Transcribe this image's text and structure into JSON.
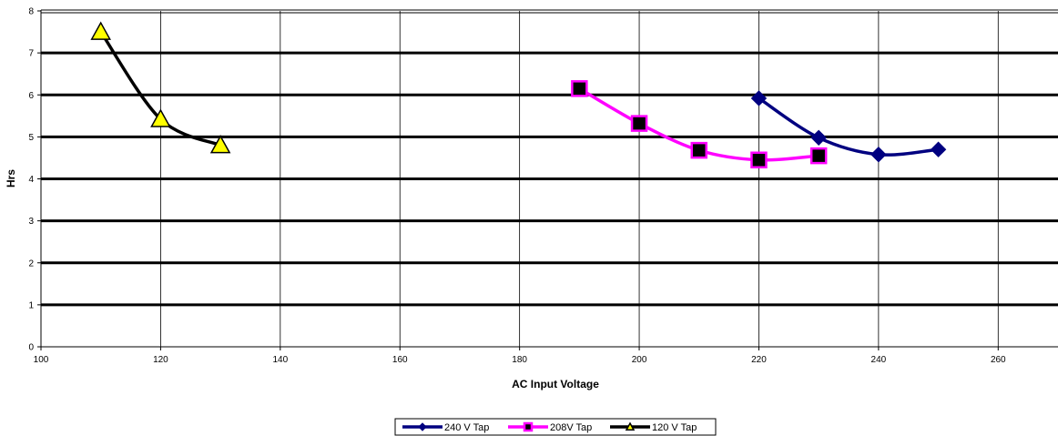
{
  "chart_data": {
    "type": "line",
    "title": "",
    "xlabel": "AC Input Voltage",
    "ylabel": "Hrs",
    "xlim": [
      100,
      270
    ],
    "ylim": [
      0,
      8
    ],
    "xticks": [
      100,
      120,
      140,
      160,
      180,
      200,
      220,
      240,
      260
    ],
    "yticks": [
      0,
      1,
      2,
      3,
      4,
      5,
      6,
      7,
      8
    ],
    "grid": true,
    "legend_position": "bottom-center",
    "series": [
      {
        "name": "240 V Tap",
        "color": "#000080",
        "marker": "diamond",
        "marker_fill": "#000080",
        "x": [
          220,
          230,
          240,
          250
        ],
        "y": [
          5.92,
          4.98,
          4.58,
          4.7
        ]
      },
      {
        "name": "208V Tap",
        "color": "#ff00ff",
        "marker": "square",
        "marker_fill": "#000000",
        "x": [
          190,
          200,
          210,
          220,
          230
        ],
        "y": [
          6.15,
          5.32,
          4.68,
          4.45,
          4.55
        ]
      },
      {
        "name": "120 V Tap",
        "color": "#000000",
        "marker": "triangle",
        "marker_fill": "#ffff00",
        "x": [
          110,
          120,
          130
        ],
        "y": [
          7.5,
          5.42,
          4.8
        ]
      }
    ]
  }
}
